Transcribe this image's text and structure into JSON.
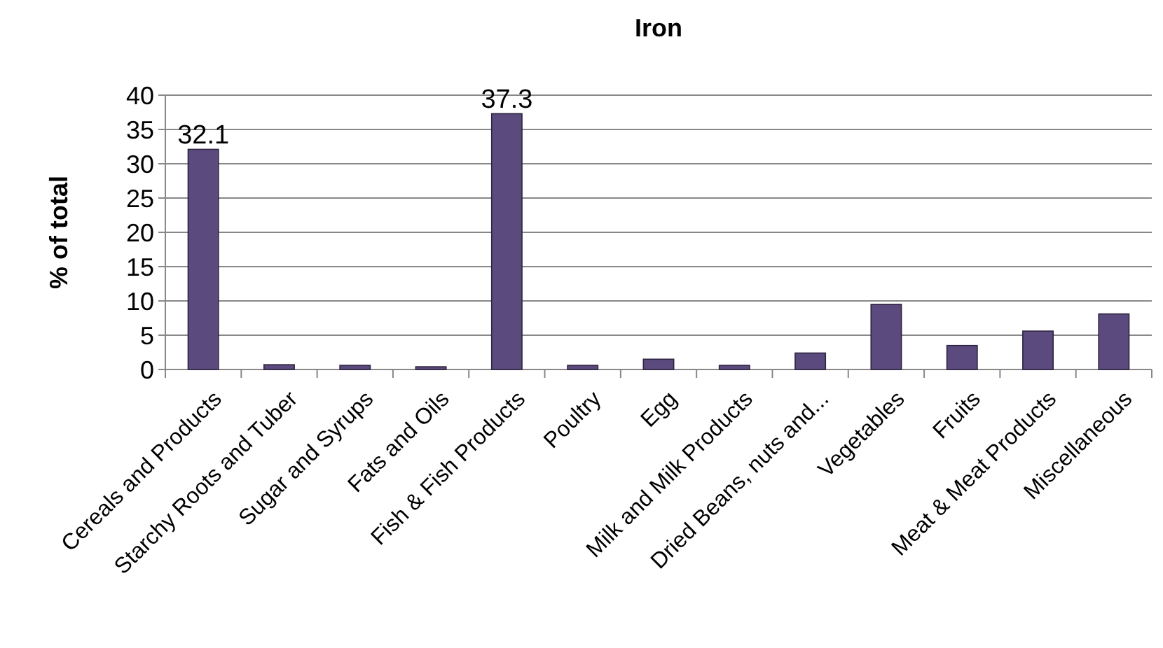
{
  "chart_data": {
    "type": "bar",
    "title": "Iron",
    "ylabel": "% of total",
    "categories": [
      "Cereals and Products",
      "Starchy Roots and Tuber",
      "Sugar and Syrups",
      "Fats and Oils",
      "Fish & Fish Products",
      "Poultry",
      "Egg",
      "Milk and Milk Products",
      "Dried Beans, nuts and...",
      "Vegetables",
      "Fruits",
      "Meat & Meat Products",
      "Miscellaneous"
    ],
    "values": [
      32.1,
      0.7,
      0.6,
      0.4,
      37.3,
      0.6,
      1.5,
      0.6,
      2.4,
      9.5,
      3.5,
      5.6,
      8.1
    ],
    "value_labels": [
      "32.1",
      null,
      null,
      null,
      "37.3",
      null,
      null,
      null,
      null,
      null,
      null,
      null,
      null
    ],
    "color": "#5b4a7e",
    "ylim": [
      0,
      40
    ],
    "yticks": [
      0,
      5,
      10,
      15,
      20,
      25,
      30,
      35,
      40
    ],
    "grid": "y"
  }
}
